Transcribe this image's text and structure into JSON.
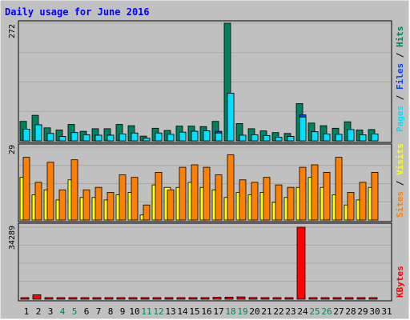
{
  "chart_data": {
    "type": "bar",
    "title": "Daily usage for June 2016",
    "categories": [
      "1",
      "2",
      "3",
      "4",
      "5",
      "6",
      "7",
      "8",
      "9",
      "10",
      "11",
      "12",
      "13",
      "14",
      "15",
      "16",
      "17",
      "18",
      "19",
      "20",
      "21",
      "22",
      "23",
      "24",
      "25",
      "26",
      "27",
      "28",
      "29",
      "30",
      "31"
    ],
    "weekend_days": [
      "4",
      "5",
      "11",
      "12",
      "18",
      "19",
      "25",
      "26"
    ],
    "panels": [
      {
        "name": "hits-files-pages",
        "ymax_label": "272",
        "ymax": 272,
        "legend": [
          {
            "text": "Pages",
            "color": "#00e0ff"
          },
          {
            "text": "Files",
            "color": "#0040ff"
          },
          {
            "text": "Hits",
            "color": "#00805c"
          }
        ],
        "series": [
          {
            "name": "Hits",
            "color": "#00805c",
            "values": [
              45,
              59,
              30,
              25,
              38,
              22,
              28,
              28,
              38,
              35,
              11,
              29,
              24,
              34,
              34,
              33,
              45,
              272,
              40,
              28,
              23,
              19,
              17,
              86,
              41,
              35,
              29,
              44,
              25,
              26,
              0
            ]
          },
          {
            "name": "Files",
            "color": "#0040ff",
            "values": [
              27,
              37,
              17,
              10,
              19,
              14,
              13,
              13,
              16,
              18,
              6,
              18,
              15,
              20,
              22,
              23,
              22,
              110,
              13,
              14,
              12,
              8,
              10,
              60,
              21,
              16,
              15,
              26,
              14,
              16,
              0
            ]
          },
          {
            "name": "Pages",
            "color": "#00e0ff",
            "values": [
              27,
              37,
              17,
              10,
              19,
              14,
              13,
              13,
              16,
              18,
              6,
              18,
              15,
              20,
              22,
              23,
              18,
              110,
              13,
              14,
              12,
              8,
              10,
              55,
              21,
              16,
              15,
              26,
              14,
              16,
              0
            ]
          }
        ]
      },
      {
        "name": "visits-sites",
        "ymax_label": "29",
        "ymax": 29,
        "legend": [
          {
            "text": "Sites",
            "color": "#ff8000"
          },
          {
            "text": "Visits",
            "color": "#ffff00"
          }
        ],
        "series": [
          {
            "name": "Visits",
            "color": "#ffff00",
            "values": [
              17,
              10,
              12,
              8,
              16,
              9,
              9,
              8,
              10,
              11,
              2,
              14,
              13,
              13,
              15,
              13,
              12,
              9,
              11,
              10,
              11,
              7,
              9,
              13,
              17,
              13,
              10,
              6,
              8,
              13,
              0
            ]
          },
          {
            "name": "Sites",
            "color": "#ff8000",
            "values": [
              25,
              15,
              23,
              12,
              24,
              12,
              13,
              11,
              18,
              17,
              6,
              19,
              12,
              21,
              22,
              21,
              18,
              26,
              16,
              15,
              17,
              14,
              13,
              21,
              22,
              19,
              25,
              11,
              15,
              19,
              0
            ]
          }
        ]
      },
      {
        "name": "kbytes",
        "ymax_label": "34289",
        "ymax": 34289,
        "legend": [
          {
            "text": "KBytes",
            "color": "#ff0000"
          }
        ],
        "series": [
          {
            "name": "KBytes",
            "color": "#ff0000",
            "values": [
              300,
              2100,
              200,
              150,
              200,
              150,
              150,
              150,
              200,
              150,
              100,
              150,
              150,
              200,
              200,
              200,
              900,
              1000,
              1100,
              800,
              300,
              200,
              200,
              34289,
              200,
              200,
              150,
              200,
              150,
              150,
              0
            ]
          }
        ]
      }
    ]
  }
}
